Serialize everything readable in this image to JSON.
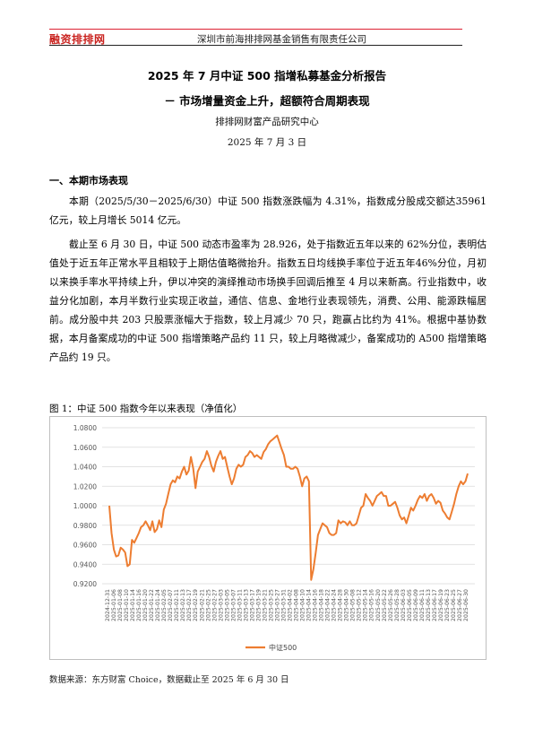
{
  "header": {
    "logo_text": "融资排排网",
    "company": "深圳市前海排排网基金销售有限责任公司",
    "logo_color": "#c9231f"
  },
  "report": {
    "title_line1": "2025 年 7 月中证 500 指增私募基金分析报告",
    "title_line2": "－ 市场增量资金上升，超额符合周期表现",
    "author": "排排网财富产品研究中心",
    "date": "2025 年 7 月 3 日"
  },
  "section1": {
    "heading": "一、本期市场表现",
    "para1": "本期（2025/5/30－2025/6/30）中证 500 指数涨跌幅为 4.31%，指数成分股成交额达35961 亿元，较上月增长 5014 亿元。",
    "para2": "截止至 6 月 30 日，中证 500 动态市盈率为 28.926，处于指数近五年以来的 62%分位，表明估值处于近五年正常水平且相较于上期估值略微抬升。指数五日均线换手率位于近五年46%分位，月初以来换手率水平持续上升，伊以冲突的演绎推动市场换手回调后推至 4 月以来新高。行业指数中，收益分化加剧，本月半数行业实现正收益，通信、信息、金地行业表现领先，消费、公用、能源跌幅居前。成分股中共 203 只股票涨幅大于指数，较上月减少 70 只，跑赢占比约为 41%。根据中基协数据，本月备案成功的中证 500 指增策略产品约 11 只，较上月略微减少，备案成功的 A500 指增策略产品约 19 只。"
  },
  "figure": {
    "caption": "图 1：中证 500 指数今年以来表现（净值化）",
    "source": "数据来源：东方财富 Choice，数据截止至 2025 年 6 月 30 日"
  },
  "chart_data": {
    "type": "line",
    "title": "",
    "xlabel": "",
    "ylabel": "",
    "ylim": [
      0.92,
      1.08
    ],
    "yticks": [
      "0.9200",
      "0.9400",
      "0.9600",
      "0.9800",
      "1.0000",
      "1.0200",
      "1.0400",
      "1.0600",
      "1.0800"
    ],
    "xticks": [
      "2024-12-31",
      "2025-01-06",
      "2025-01-10",
      "2025-01-16",
      "2025-01-22",
      "2025-02-05",
      "2025-02-11",
      "2025-02-17",
      "2025-02-21",
      "2025-02-27",
      "2025-03-05",
      "2025-03-11",
      "2025-03-17",
      "2025-03-21",
      "2025-03-27",
      "2025-04-02",
      "2025-04-10",
      "2025-04-16",
      "2025-04-22",
      "2025-04-28",
      "2025-05-08",
      "2025-05-14",
      "2025-05-20",
      "2025-05-26",
      "2025-06-03",
      "2025-06-09",
      "2025-06-13",
      "2025-06-19",
      "2025-06-25",
      "2025-06-30"
    ],
    "xtick_labels": [
      "2024-12-31",
      "2025-01-06",
      "2025-01-08",
      "2025-01-10",
      "2025-01-14",
      "2025-01-16",
      "2025-01-20",
      "2025-01-22",
      "2025-01-24",
      "2025-02-05",
      "2025-02-07",
      "2025-02-11",
      "2025-02-13",
      "2025-02-17",
      "2025-02-19",
      "2025-02-21",
      "2025-02-25",
      "2025-02-27",
      "2025-03-03",
      "2025-03-05",
      "2025-03-07",
      "2025-03-11",
      "2025-03-13",
      "2025-03-17",
      "2025-03-19",
      "2025-03-21",
      "2025-03-25",
      "2025-03-27",
      "2025-03-31",
      "2025-04-02",
      "2025-04-08",
      "2025-04-10",
      "2025-04-14",
      "2025-04-16",
      "2025-04-18",
      "2025-04-22",
      "2025-04-24",
      "2025-04-28",
      "2025-04-30",
      "2025-05-08",
      "2025-05-12",
      "2025-05-14",
      "2025-05-16",
      "2025-05-20",
      "2025-05-22",
      "2025-05-26",
      "2025-05-28",
      "2025-06-03",
      "2025-06-05",
      "2025-06-09",
      "2025-06-11",
      "2025-06-13",
      "2025-06-17",
      "2025-06-19",
      "2025-06-23",
      "2025-06-25",
      "2025-06-27",
      "2025-06-30"
    ],
    "series": [
      {
        "name": "中证500",
        "color": "#ed7d31",
        "values": [
          1.0,
          0.972,
          0.955,
          0.948,
          0.949,
          0.957,
          0.955,
          0.952,
          0.938,
          0.94,
          0.965,
          0.962,
          0.967,
          0.972,
          0.978,
          0.98,
          0.984,
          0.98,
          0.975,
          0.984,
          0.973,
          0.976,
          0.985,
          0.978,
          0.996,
          1.002,
          1.012,
          1.022,
          1.026,
          1.024,
          1.03,
          1.028,
          1.035,
          1.04,
          1.032,
          1.036,
          1.05,
          1.038,
          1.018,
          1.035,
          1.04,
          1.045,
          1.048,
          1.056,
          1.05,
          1.041,
          1.035,
          1.045,
          1.051,
          1.056,
          1.048,
          1.05,
          1.04,
          1.03,
          1.022,
          1.028,
          1.038,
          1.042,
          1.04,
          1.042,
          1.05,
          1.052,
          1.056,
          1.054,
          1.05,
          1.052,
          1.05,
          1.048,
          1.055,
          1.058,
          1.063,
          1.066,
          1.068,
          1.07,
          1.072,
          1.065,
          1.058,
          1.052,
          1.04,
          1.04,
          1.038,
          1.038,
          1.04,
          1.038,
          1.03,
          1.02,
          1.028,
          1.03,
          1.025,
          0.924,
          0.935,
          0.952,
          0.97,
          0.976,
          0.982,
          0.98,
          0.978,
          0.972,
          0.97,
          0.97,
          0.972,
          0.985,
          0.982,
          0.984,
          0.983,
          0.98,
          0.984,
          0.98,
          0.98,
          0.982,
          0.99,
          0.998,
          1.0,
          1.012,
          1.008,
          1.005,
          1.0,
          1.005,
          1.01,
          1.012,
          1.014,
          1.01,
          1.01,
          1.0,
          1.0,
          1.002,
          1.004,
          0.998,
          0.99,
          0.986,
          0.988,
          0.982,
          0.99,
          0.998,
          0.995,
          1.0,
          1.006,
          1.01,
          1.008,
          1.012,
          1.005,
          1.01,
          1.012,
          1.008,
          1.002,
          1.005,
          1.003,
          0.995,
          0.992,
          0.988,
          0.986,
          0.994,
          1.002,
          1.012,
          1.02,
          1.025,
          1.022,
          1.025,
          1.033
        ]
      }
    ],
    "legend": "bottom-center",
    "grid": true
  }
}
